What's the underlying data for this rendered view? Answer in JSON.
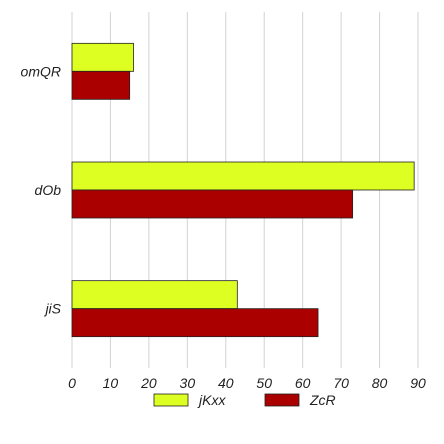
{
  "chart_data": {
    "type": "bar",
    "orientation": "horizontal",
    "categories": [
      "jiS",
      "dOb",
      "omQR"
    ],
    "series": [
      {
        "name": "jKxx",
        "values": [
          43,
          89,
          16
        ],
        "color": "#ddff22"
      },
      {
        "name": "ZcR",
        "values": [
          64,
          73,
          15
        ],
        "color": "#aa0000"
      }
    ],
    "xlim": [
      0,
      90
    ],
    "x_ticks": [
      0,
      10,
      20,
      30,
      40,
      50,
      60,
      70,
      80,
      90
    ],
    "title": "",
    "xlabel": "",
    "ylabel": "",
    "grid": true,
    "legend_position": "bottom"
  }
}
